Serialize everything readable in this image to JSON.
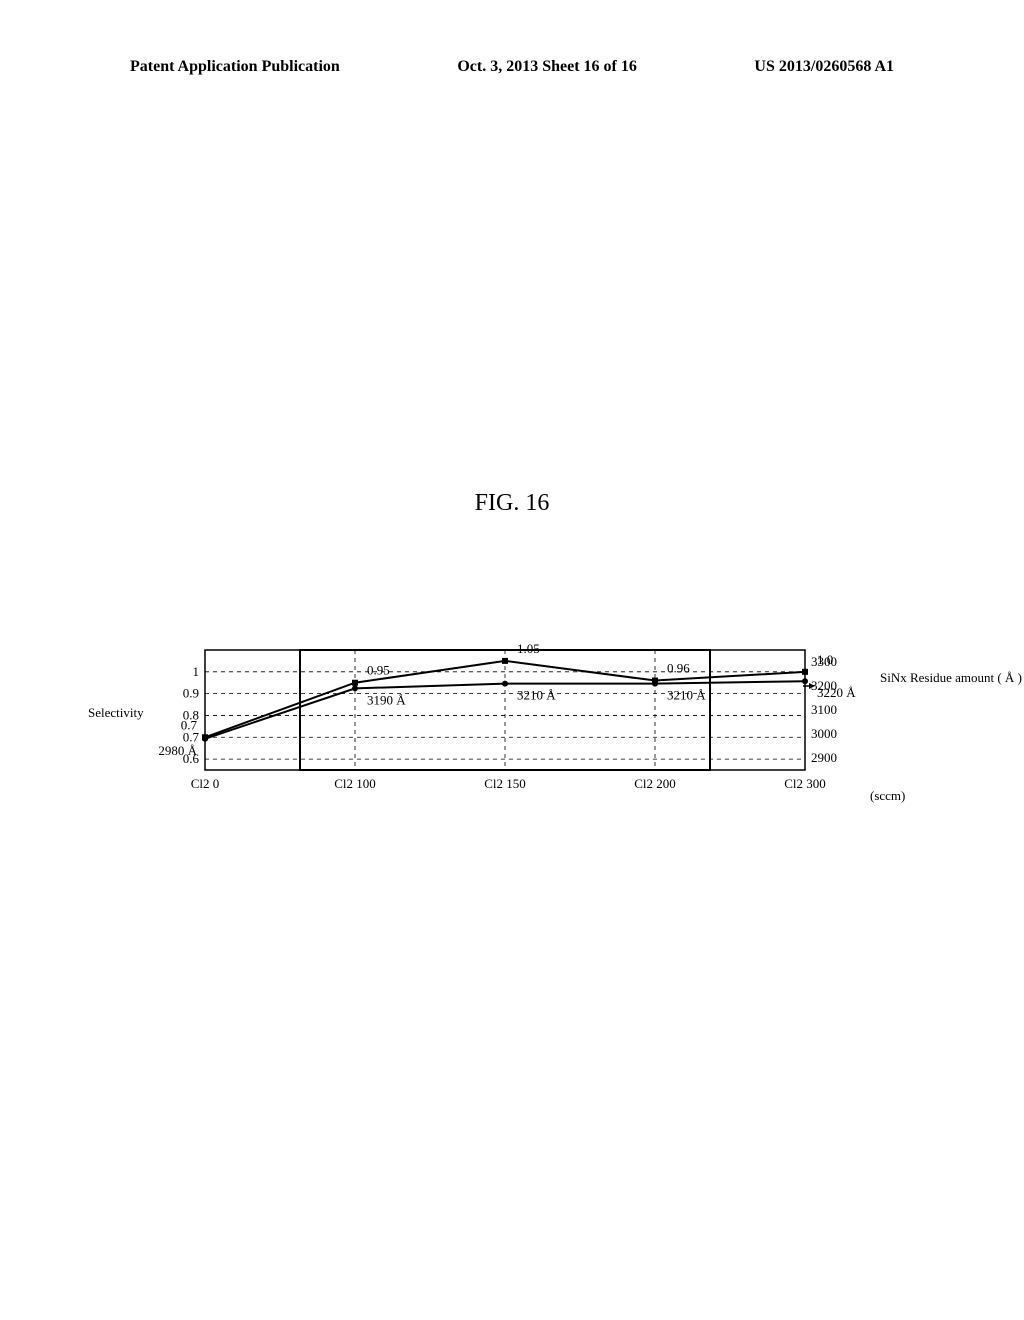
{
  "header": {
    "left": "Patent Application Publication",
    "center": "Oct. 3, 2013  Sheet 16 of 16",
    "right": "US 2013/0260568 A1"
  },
  "figure": {
    "title": "FIG. 16",
    "type": "line",
    "x_categories": [
      "Cl2 0",
      "Cl2 100",
      "Cl2 150",
      "Cl2 200",
      "Cl2 300"
    ],
    "x_unit": "(sccm)",
    "y_left": {
      "label": "Selectivity",
      "ticks": [
        0.6,
        0.7,
        0.8,
        0.9,
        1
      ],
      "min": 0.55,
      "max": 1.1
    },
    "y_right": {
      "label": "SiNx\nResidue\namount\n( Å )",
      "ticks": [
        2900,
        3000,
        3100,
        3200,
        3300
      ],
      "min": 2850,
      "max": 3350
    },
    "series": [
      {
        "name": "selectivity",
        "marker": "square",
        "color": "#000000",
        "values": [
          0.7,
          0.95,
          1.05,
          0.96,
          1.0
        ],
        "value_labels": [
          "0.7",
          "0.95",
          "1.05",
          "0.96",
          "1.0"
        ]
      },
      {
        "name": "residue",
        "marker": "circle",
        "color": "#000000",
        "values": [
          2980,
          3190,
          3210,
          3210,
          3220
        ],
        "value_labels": [
          "2980 Å",
          "3190 Å",
          "3210 Å",
          "3210 Å",
          "3220 Å"
        ]
      }
    ],
    "highlight_box": {
      "x_start_idx": 1,
      "x_end_idx": 3,
      "color": "#000000",
      "line_width": 2
    },
    "grid_color": "#000000",
    "grid_dash": "4,4",
    "background_color": "#ffffff",
    "font_size_labels": 13,
    "line_width": 2,
    "marker_size": 6
  }
}
